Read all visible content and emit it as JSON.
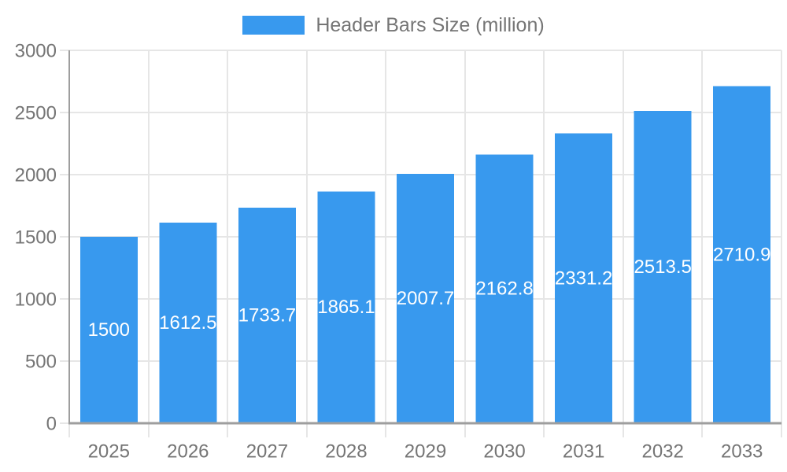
{
  "legend": {
    "label": "Header Bars Size (million)"
  },
  "chart_data": {
    "type": "bar",
    "title": "",
    "xlabel": "",
    "ylabel": "",
    "categories": [
      "2025",
      "2026",
      "2027",
      "2028",
      "2029",
      "2030",
      "2031",
      "2032",
      "2033"
    ],
    "values": [
      1500,
      1612.5,
      1733.7,
      1865.1,
      2007.7,
      2162.8,
      2331.2,
      2513.5,
      2710.9
    ],
    "series_name": "Header Bars Size (million)",
    "ylim": [
      0,
      3000
    ],
    "yticks": [
      0,
      500,
      1000,
      1500,
      2000,
      2500,
      3000
    ],
    "grid": true,
    "legend_position": "top-center",
    "value_label_position": "inside-center"
  },
  "colors": {
    "bar": "#3899EE",
    "grid": "#e6e6e6",
    "axis": "#9e9e9e",
    "text": "#757575",
    "value_label": "#ffffff",
    "background": "#ffffff"
  }
}
